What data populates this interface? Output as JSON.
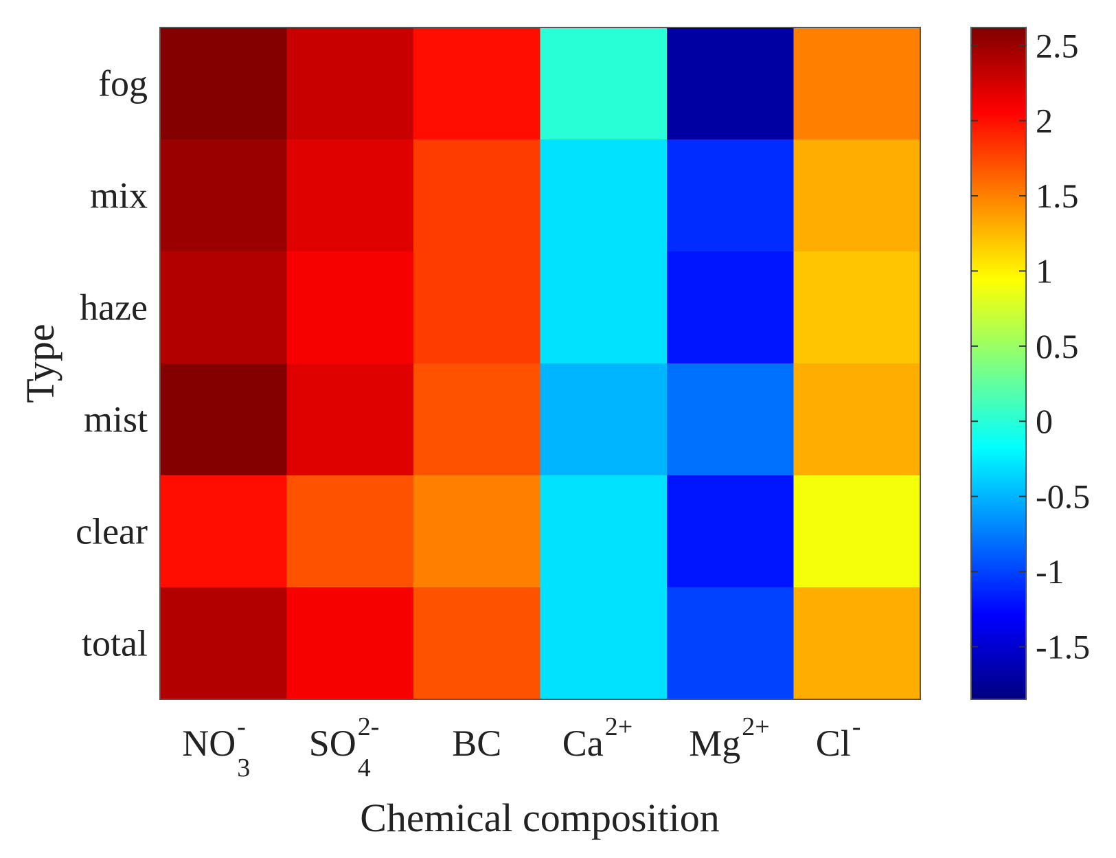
{
  "chart_data": {
    "type": "heatmap",
    "title": "",
    "xlabel": "Chemical composition",
    "ylabel": "Type",
    "x_categories": [
      {
        "base": "NO",
        "sub": "3",
        "sup": "-"
      },
      {
        "base": "SO",
        "sub": "4",
        "sup": "2-"
      },
      {
        "base": "BC",
        "sub": "",
        "sup": ""
      },
      {
        "base": "Ca",
        "sub": "",
        "sup": "2+"
      },
      {
        "base": "Mg",
        "sub": "",
        "sup": "2+"
      },
      {
        "base": "Cl",
        "sub": "",
        "sup": "-"
      }
    ],
    "y_categories": [
      "fog",
      "mix",
      "haze",
      "mist",
      "clear",
      "total"
    ],
    "values": [
      [
        2.6,
        2.3,
        2.0,
        0.0,
        -1.7,
        1.5
      ],
      [
        2.5,
        2.2,
        1.8,
        -0.3,
        -1.1,
        1.3
      ],
      [
        2.4,
        2.1,
        1.8,
        -0.3,
        -1.2,
        1.2
      ],
      [
        2.6,
        2.2,
        1.7,
        -0.5,
        -0.8,
        1.3
      ],
      [
        2.0,
        1.7,
        1.5,
        -0.3,
        -1.2,
        0.9
      ],
      [
        2.4,
        2.1,
        1.7,
        -0.3,
        -1.0,
        1.3
      ]
    ],
    "colorbar": {
      "min": -1.85,
      "max": 2.62,
      "ticks": [
        2.5,
        2,
        1.5,
        1,
        0.5,
        0,
        -0.5,
        -1,
        -1.5
      ],
      "tick_labels": [
        "2.5",
        "2",
        "1.5",
        "1",
        "0.5",
        "0",
        "-0.5",
        "-1",
        "-1.5"
      ],
      "colormap": "jet"
    }
  }
}
